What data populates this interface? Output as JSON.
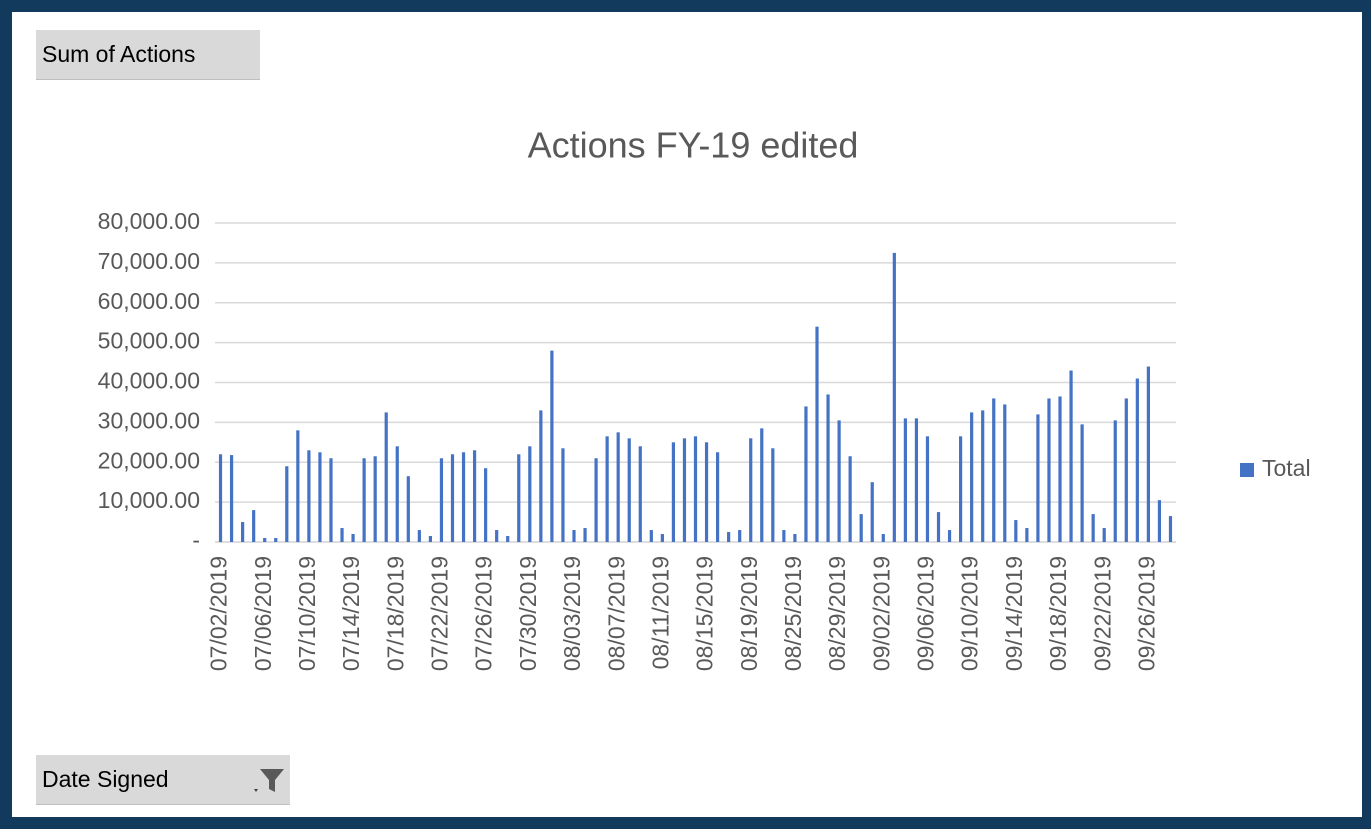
{
  "ui": {
    "field_button": "Sum of Actions",
    "axis_button": "Date Signed"
  },
  "chart_data": {
    "type": "bar",
    "title": "Actions FY-19 edited",
    "categories": [
      "07/02/2019",
      null,
      null,
      null,
      "07/06/2019",
      null,
      null,
      null,
      "07/10/2019",
      null,
      null,
      null,
      "07/14/2019",
      null,
      null,
      null,
      "07/18/2019",
      null,
      null,
      null,
      "07/22/2019",
      null,
      null,
      null,
      "07/26/2019",
      null,
      null,
      null,
      "07/30/2019",
      null,
      null,
      null,
      "08/03/2019",
      null,
      null,
      null,
      "08/07/2019",
      null,
      null,
      null,
      "08/11/2019",
      null,
      null,
      null,
      "08/15/2019",
      null,
      null,
      null,
      "08/19/2019",
      null,
      null,
      null,
      "08/25/2019",
      null,
      null,
      null,
      "08/29/2019",
      null,
      null,
      null,
      "09/02/2019",
      null,
      null,
      null,
      "09/06/2019",
      null,
      null,
      null,
      "09/10/2019",
      null,
      null,
      null,
      "09/14/2019",
      null,
      null,
      null,
      "09/18/2019",
      null,
      null,
      null,
      "09/22/2019",
      null,
      null,
      null,
      "09/26/2019",
      null,
      null
    ],
    "series": [
      {
        "name": "Total",
        "color": "#4472c4",
        "values": [
          22000,
          21800,
          5000,
          8000,
          1000,
          1000,
          19000,
          28000,
          23000,
          22500,
          21000,
          3500,
          2000,
          21000,
          21500,
          32500,
          24000,
          16500,
          3000,
          1500,
          21000,
          22000,
          22500,
          23000,
          18500,
          3000,
          1500,
          22000,
          24000,
          33000,
          48000,
          23500,
          3000,
          3500,
          21000,
          26500,
          27500,
          26000,
          24000,
          3000,
          2000,
          25000,
          26000,
          26500,
          25000,
          22500,
          2500,
          3000,
          26000,
          28500,
          23500,
          3000,
          2000,
          34000,
          54000,
          37000,
          30500,
          21500,
          7000,
          15000,
          2000,
          72500,
          31000,
          31000,
          26500,
          7500,
          3000,
          26500,
          32500,
          33000,
          36000,
          34500,
          5500,
          3500,
          32000,
          36000,
          36500,
          43000,
          29500,
          7000,
          3500,
          30500,
          36000,
          41000,
          44000,
          10500,
          6500
        ]
      }
    ],
    "ylim": [
      0,
      80000
    ],
    "yticks": [
      {
        "value": 0,
        "label": "-"
      },
      {
        "value": 10000,
        "label": "10,000.00"
      },
      {
        "value": 20000,
        "label": "20,000.00"
      },
      {
        "value": 30000,
        "label": "30,000.00"
      },
      {
        "value": 40000,
        "label": "40,000.00"
      },
      {
        "value": 50000,
        "label": "50,000.00"
      },
      {
        "value": 60000,
        "label": "60,000.00"
      },
      {
        "value": 70000,
        "label": "70,000.00"
      },
      {
        "value": 80000,
        "label": "80,000.00"
      }
    ],
    "grid": true,
    "legend": "right"
  }
}
